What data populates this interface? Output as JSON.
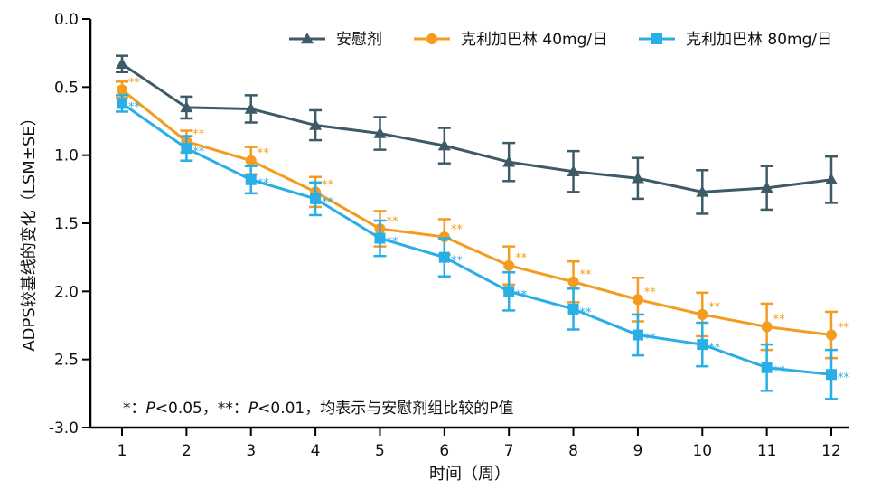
{
  "chart_data": {
    "type": "line",
    "x": [
      1,
      2,
      3,
      4,
      5,
      6,
      7,
      8,
      9,
      10,
      11,
      12
    ],
    "xlabel": "时间（周）",
    "ylabel": "ADPS较基线的变化（LSM±SE）",
    "ylim": [
      0.0,
      -3.0
    ],
    "y_ticks": [
      "0.0",
      "0.5",
      "1.0",
      "1.5",
      "2.0",
      "2.5",
      "-3.0"
    ],
    "y_tick_values": [
      0,
      -0.5,
      -1.0,
      -1.5,
      -2.0,
      -2.5,
      -3.0
    ],
    "legend_position": "top-right",
    "series": [
      {
        "name": "安慰剂",
        "color": "#3d5a66",
        "marker": "triangle",
        "values": [
          -0.33,
          -0.65,
          -0.66,
          -0.78,
          -0.84,
          -0.93,
          -1.05,
          -1.12,
          -1.17,
          -1.27,
          -1.24,
          -1.18
        ],
        "se": [
          0.06,
          0.08,
          0.1,
          0.11,
          0.12,
          0.13,
          0.14,
          0.15,
          0.15,
          0.16,
          0.16,
          0.17
        ],
        "sig": [
          "",
          "",
          "",
          "",
          "",
          "",
          "",
          "",
          "",
          "",
          "",
          ""
        ]
      },
      {
        "name": "克利加巴林 40mg/日",
        "color": "#f39c1f",
        "marker": "circle",
        "values": [
          -0.52,
          -0.9,
          -1.04,
          -1.27,
          -1.54,
          -1.6,
          -1.81,
          -1.93,
          -2.06,
          -2.17,
          -2.26,
          -2.32
        ],
        "se": [
          0.06,
          0.08,
          0.1,
          0.11,
          0.13,
          0.13,
          0.14,
          0.15,
          0.16,
          0.16,
          0.17,
          0.17
        ],
        "sig": [
          "**",
          "**",
          "**",
          "**",
          "**",
          "**",
          "**",
          "**",
          "**",
          "**",
          "**",
          "**"
        ]
      },
      {
        "name": "克利加巴林 80mg/日",
        "color": "#29aee6",
        "marker": "square",
        "values": [
          -0.62,
          -0.95,
          -1.18,
          -1.32,
          -1.61,
          -1.75,
          -2.0,
          -2.13,
          -2.32,
          -2.39,
          -2.56,
          -2.61
        ],
        "se": [
          0.06,
          0.09,
          0.1,
          0.12,
          0.13,
          0.14,
          0.14,
          0.15,
          0.15,
          0.16,
          0.17,
          0.18
        ],
        "sig": [
          "**",
          "**",
          "**",
          "**",
          "**",
          "**",
          "**",
          "**",
          "**",
          "**",
          "**",
          "**"
        ]
      }
    ],
    "annotation": {
      "star1": "*",
      "colon1": "：",
      "p1": "P",
      "t1": "<0.05，",
      "star2": "**",
      "colon2": "：",
      "p2": "P",
      "t2": "<0.01，均表示与安慰剂组比较的P值"
    }
  }
}
